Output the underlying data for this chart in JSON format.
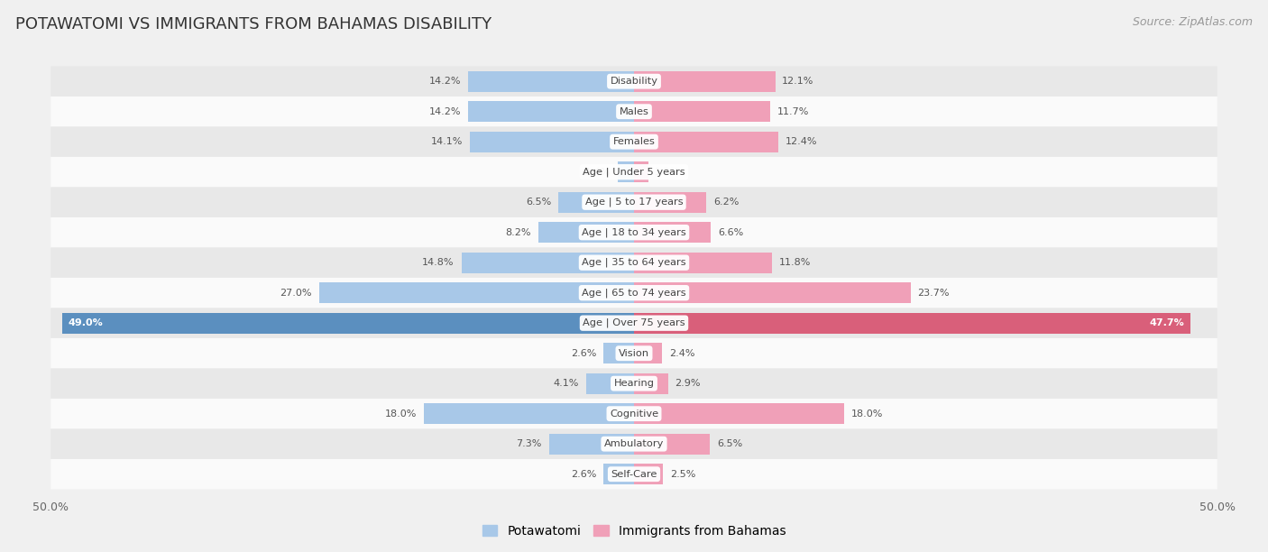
{
  "title": "POTAWATOMI VS IMMIGRANTS FROM BAHAMAS DISABILITY",
  "source": "Source: ZipAtlas.com",
  "categories": [
    "Disability",
    "Males",
    "Females",
    "Age | Under 5 years",
    "Age | 5 to 17 years",
    "Age | 18 to 34 years",
    "Age | 35 to 64 years",
    "Age | 65 to 74 years",
    "Age | Over 75 years",
    "Vision",
    "Hearing",
    "Cognitive",
    "Ambulatory",
    "Self-Care"
  ],
  "potawatomi": [
    14.2,
    14.2,
    14.1,
    1.4,
    6.5,
    8.2,
    14.8,
    27.0,
    49.0,
    2.6,
    4.1,
    18.0,
    7.3,
    2.6
  ],
  "bahamas": [
    12.1,
    11.7,
    12.4,
    1.2,
    6.2,
    6.6,
    11.8,
    23.7,
    47.7,
    2.4,
    2.9,
    18.0,
    6.5,
    2.5
  ],
  "color_potawatomi": "#a8c8e8",
  "color_bahamas": "#f0a0b8",
  "color_potawatomi_dark": "#5b8fbf",
  "color_bahamas_dark": "#d95f7a",
  "axis_max": 50.0,
  "bg_color": "#f0f0f0",
  "row_bg_light": "#fafafa",
  "row_bg_dark": "#e8e8e8",
  "highlight_idx": 8,
  "legend_label_potawatomi": "Potawatomi",
  "legend_label_bahamas": "Immigrants from Bahamas"
}
